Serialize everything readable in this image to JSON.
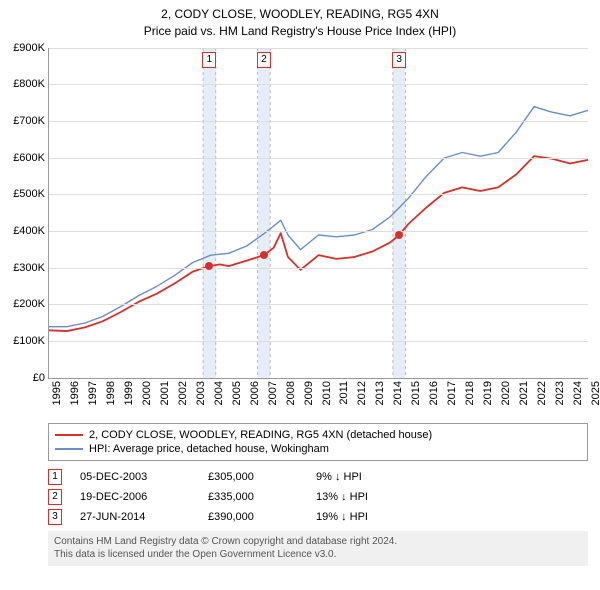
{
  "title": {
    "line1": "2, CODY CLOSE, WOODLEY, READING, RG5 4XN",
    "line2": "Price paid vs. HM Land Registry's House Price Index (HPI)",
    "fontsize": 12,
    "color": "#000000"
  },
  "chart": {
    "type": "line",
    "background_color": "#ffffff",
    "grid_color": "#dddddd",
    "axis_color": "#999999",
    "ylim": [
      0,
      900000
    ],
    "ytick_step": 100000,
    "y_labels": [
      "£0",
      "£100K",
      "£200K",
      "£300K",
      "£400K",
      "£500K",
      "£600K",
      "£700K",
      "£800K",
      "£900K"
    ],
    "x_years": [
      1995,
      1996,
      1997,
      1998,
      1999,
      2000,
      2001,
      2002,
      2003,
      2004,
      2005,
      2006,
      2007,
      2008,
      2009,
      2010,
      2011,
      2012,
      2013,
      2014,
      2015,
      2016,
      2017,
      2018,
      2019,
      2020,
      2021,
      2022,
      2023,
      2024,
      2025
    ],
    "x_range": [
      1995,
      2025
    ],
    "axis_label_fontsize": 11,
    "shade_color": "#d7e4f3",
    "shade_opacity": 0.65,
    "dashed_color": "#c9b0b0",
    "series": {
      "property": {
        "label": "2, CODY CLOSE, WOODLEY, READING, RG5 4XN (detached house)",
        "color": "#d6302a",
        "line_width": 1.8,
        "data": [
          [
            1995.0,
            130
          ],
          [
            1996.0,
            128
          ],
          [
            1997.0,
            138
          ],
          [
            1998.0,
            155
          ],
          [
            1999.0,
            180
          ],
          [
            2000.0,
            208
          ],
          [
            2001.0,
            230
          ],
          [
            2002.0,
            258
          ],
          [
            2003.0,
            290
          ],
          [
            2003.93,
            305
          ],
          [
            2004.5,
            310
          ],
          [
            2005.0,
            305
          ],
          [
            2006.0,
            320
          ],
          [
            2006.96,
            335
          ],
          [
            2007.5,
            355
          ],
          [
            2007.9,
            395
          ],
          [
            2008.3,
            330
          ],
          [
            2009.0,
            295
          ],
          [
            2010.0,
            335
          ],
          [
            2011.0,
            325
          ],
          [
            2012.0,
            330
          ],
          [
            2013.0,
            345
          ],
          [
            2014.0,
            370
          ],
          [
            2014.49,
            390
          ],
          [
            2015.0,
            420
          ],
          [
            2016.0,
            465
          ],
          [
            2017.0,
            505
          ],
          [
            2018.0,
            520
          ],
          [
            2019.0,
            510
          ],
          [
            2020.0,
            520
          ],
          [
            2021.0,
            555
          ],
          [
            2022.0,
            605
          ],
          [
            2023.0,
            598
          ],
          [
            2024.0,
            585
          ],
          [
            2025.0,
            595
          ]
        ]
      },
      "hpi": {
        "label": "HPI: Average price, detached house, Wokingham",
        "color": "#6a8fc5",
        "line_width": 1.4,
        "data": [
          [
            1995.0,
            140
          ],
          [
            1996.0,
            140
          ],
          [
            1997.0,
            150
          ],
          [
            1998.0,
            168
          ],
          [
            1999.0,
            195
          ],
          [
            2000.0,
            225
          ],
          [
            2001.0,
            250
          ],
          [
            2002.0,
            280
          ],
          [
            2003.0,
            315
          ],
          [
            2004.0,
            335
          ],
          [
            2005.0,
            340
          ],
          [
            2006.0,
            360
          ],
          [
            2007.0,
            395
          ],
          [
            2007.9,
            430
          ],
          [
            2008.3,
            390
          ],
          [
            2009.0,
            350
          ],
          [
            2010.0,
            390
          ],
          [
            2011.0,
            385
          ],
          [
            2012.0,
            390
          ],
          [
            2013.0,
            405
          ],
          [
            2014.0,
            440
          ],
          [
            2015.0,
            490
          ],
          [
            2016.0,
            550
          ],
          [
            2017.0,
            600
          ],
          [
            2018.0,
            615
          ],
          [
            2019.0,
            605
          ],
          [
            2020.0,
            615
          ],
          [
            2021.0,
            670
          ],
          [
            2022.0,
            740
          ],
          [
            2023.0,
            725
          ],
          [
            2024.0,
            715
          ],
          [
            2025.0,
            730
          ]
        ]
      }
    },
    "sale_markers": [
      {
        "n": "1",
        "year": 2003.93,
        "value": 305
      },
      {
        "n": "2",
        "year": 2006.96,
        "value": 335
      },
      {
        "n": "3",
        "year": 2014.49,
        "value": 390
      }
    ]
  },
  "legend": {
    "border_color": "#999999",
    "fontsize": 11
  },
  "sales": [
    {
      "n": "1",
      "date": "05-DEC-2003",
      "price": "£305,000",
      "delta": "9% ↓ HPI"
    },
    {
      "n": "2",
      "date": "19-DEC-2006",
      "price": "£335,000",
      "delta": "13% ↓ HPI"
    },
    {
      "n": "3",
      "date": "27-JUN-2014",
      "price": "£390,000",
      "delta": "19% ↓ HPI"
    }
  ],
  "footer": {
    "line1": "Contains HM Land Registry data © Crown copyright and database right 2024.",
    "line2": "This data is licensed under the Open Government Licence v3.0.",
    "bg": "#f0f0f0",
    "color": "#555555",
    "fontsize": 10
  }
}
